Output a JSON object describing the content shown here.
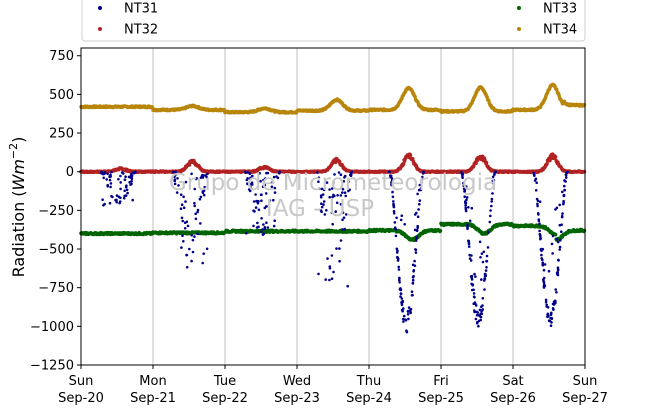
{
  "chart_data": {
    "type": "scatter",
    "ylabel": "Radiation (Wm^-2)",
    "ylabel_parts": {
      "main": "Radiation (",
      "italic": "Wm",
      "sup": "−2",
      "close": ")"
    },
    "ylim": [
      -1250,
      800
    ],
    "yticks": [
      -1250,
      -1000,
      -750,
      -500,
      -250,
      0,
      250,
      500,
      750
    ],
    "ytick_labels": [
      "−1250",
      "−1000",
      "−750",
      "−500",
      "−250",
      "0",
      "250",
      "500",
      "750"
    ],
    "xlim": [
      "2020-09-20",
      "2020-09-27"
    ],
    "xticks": [
      {
        "day": "Sun",
        "date": "Sep-20"
      },
      {
        "day": "Mon",
        "date": "Sep-21"
      },
      {
        "day": "Tue",
        "date": "Sep-22"
      },
      {
        "day": "Wed",
        "date": "Sep-23"
      },
      {
        "day": "Thu",
        "date": "Sep-24"
      },
      {
        "day": "Fri",
        "date": "Sep-25"
      },
      {
        "day": "Sat",
        "date": "Sep-26"
      },
      {
        "day": "Sun",
        "date": "Sep-27"
      }
    ],
    "grid": "vertical",
    "legend_position": "top",
    "watermark": [
      "Grupo de Micrometeorologia",
      "IAG - USP"
    ],
    "series": [
      {
        "name": "NT31",
        "color": "#00008b",
        "baseline": 0,
        "daily_min": [
          -220,
          -620,
          -430,
          -760,
          -1040,
          -1010,
          -1010
        ],
        "description_note": "night ~0, large scattered negative dips during daytime"
      },
      {
        "name": "NT32",
        "color": "#b22222",
        "baseline": 0,
        "daily_peak": [
          20,
          70,
          30,
          75,
          105,
          100,
          105
        ]
      },
      {
        "name": "NT33",
        "color": "#006400",
        "baseline_by_day": [
          -400,
          -395,
          -385,
          -385,
          -380,
          -340,
          -350
        ],
        "end": -380
      },
      {
        "name": "NT34",
        "color": "#b8860b",
        "baseline_by_day": [
          420,
          400,
          385,
          395,
          400,
          390,
          400
        ],
        "daily_peak": [
          420,
          425,
          410,
          465,
          540,
          545,
          560
        ],
        "end": 430
      }
    ]
  }
}
